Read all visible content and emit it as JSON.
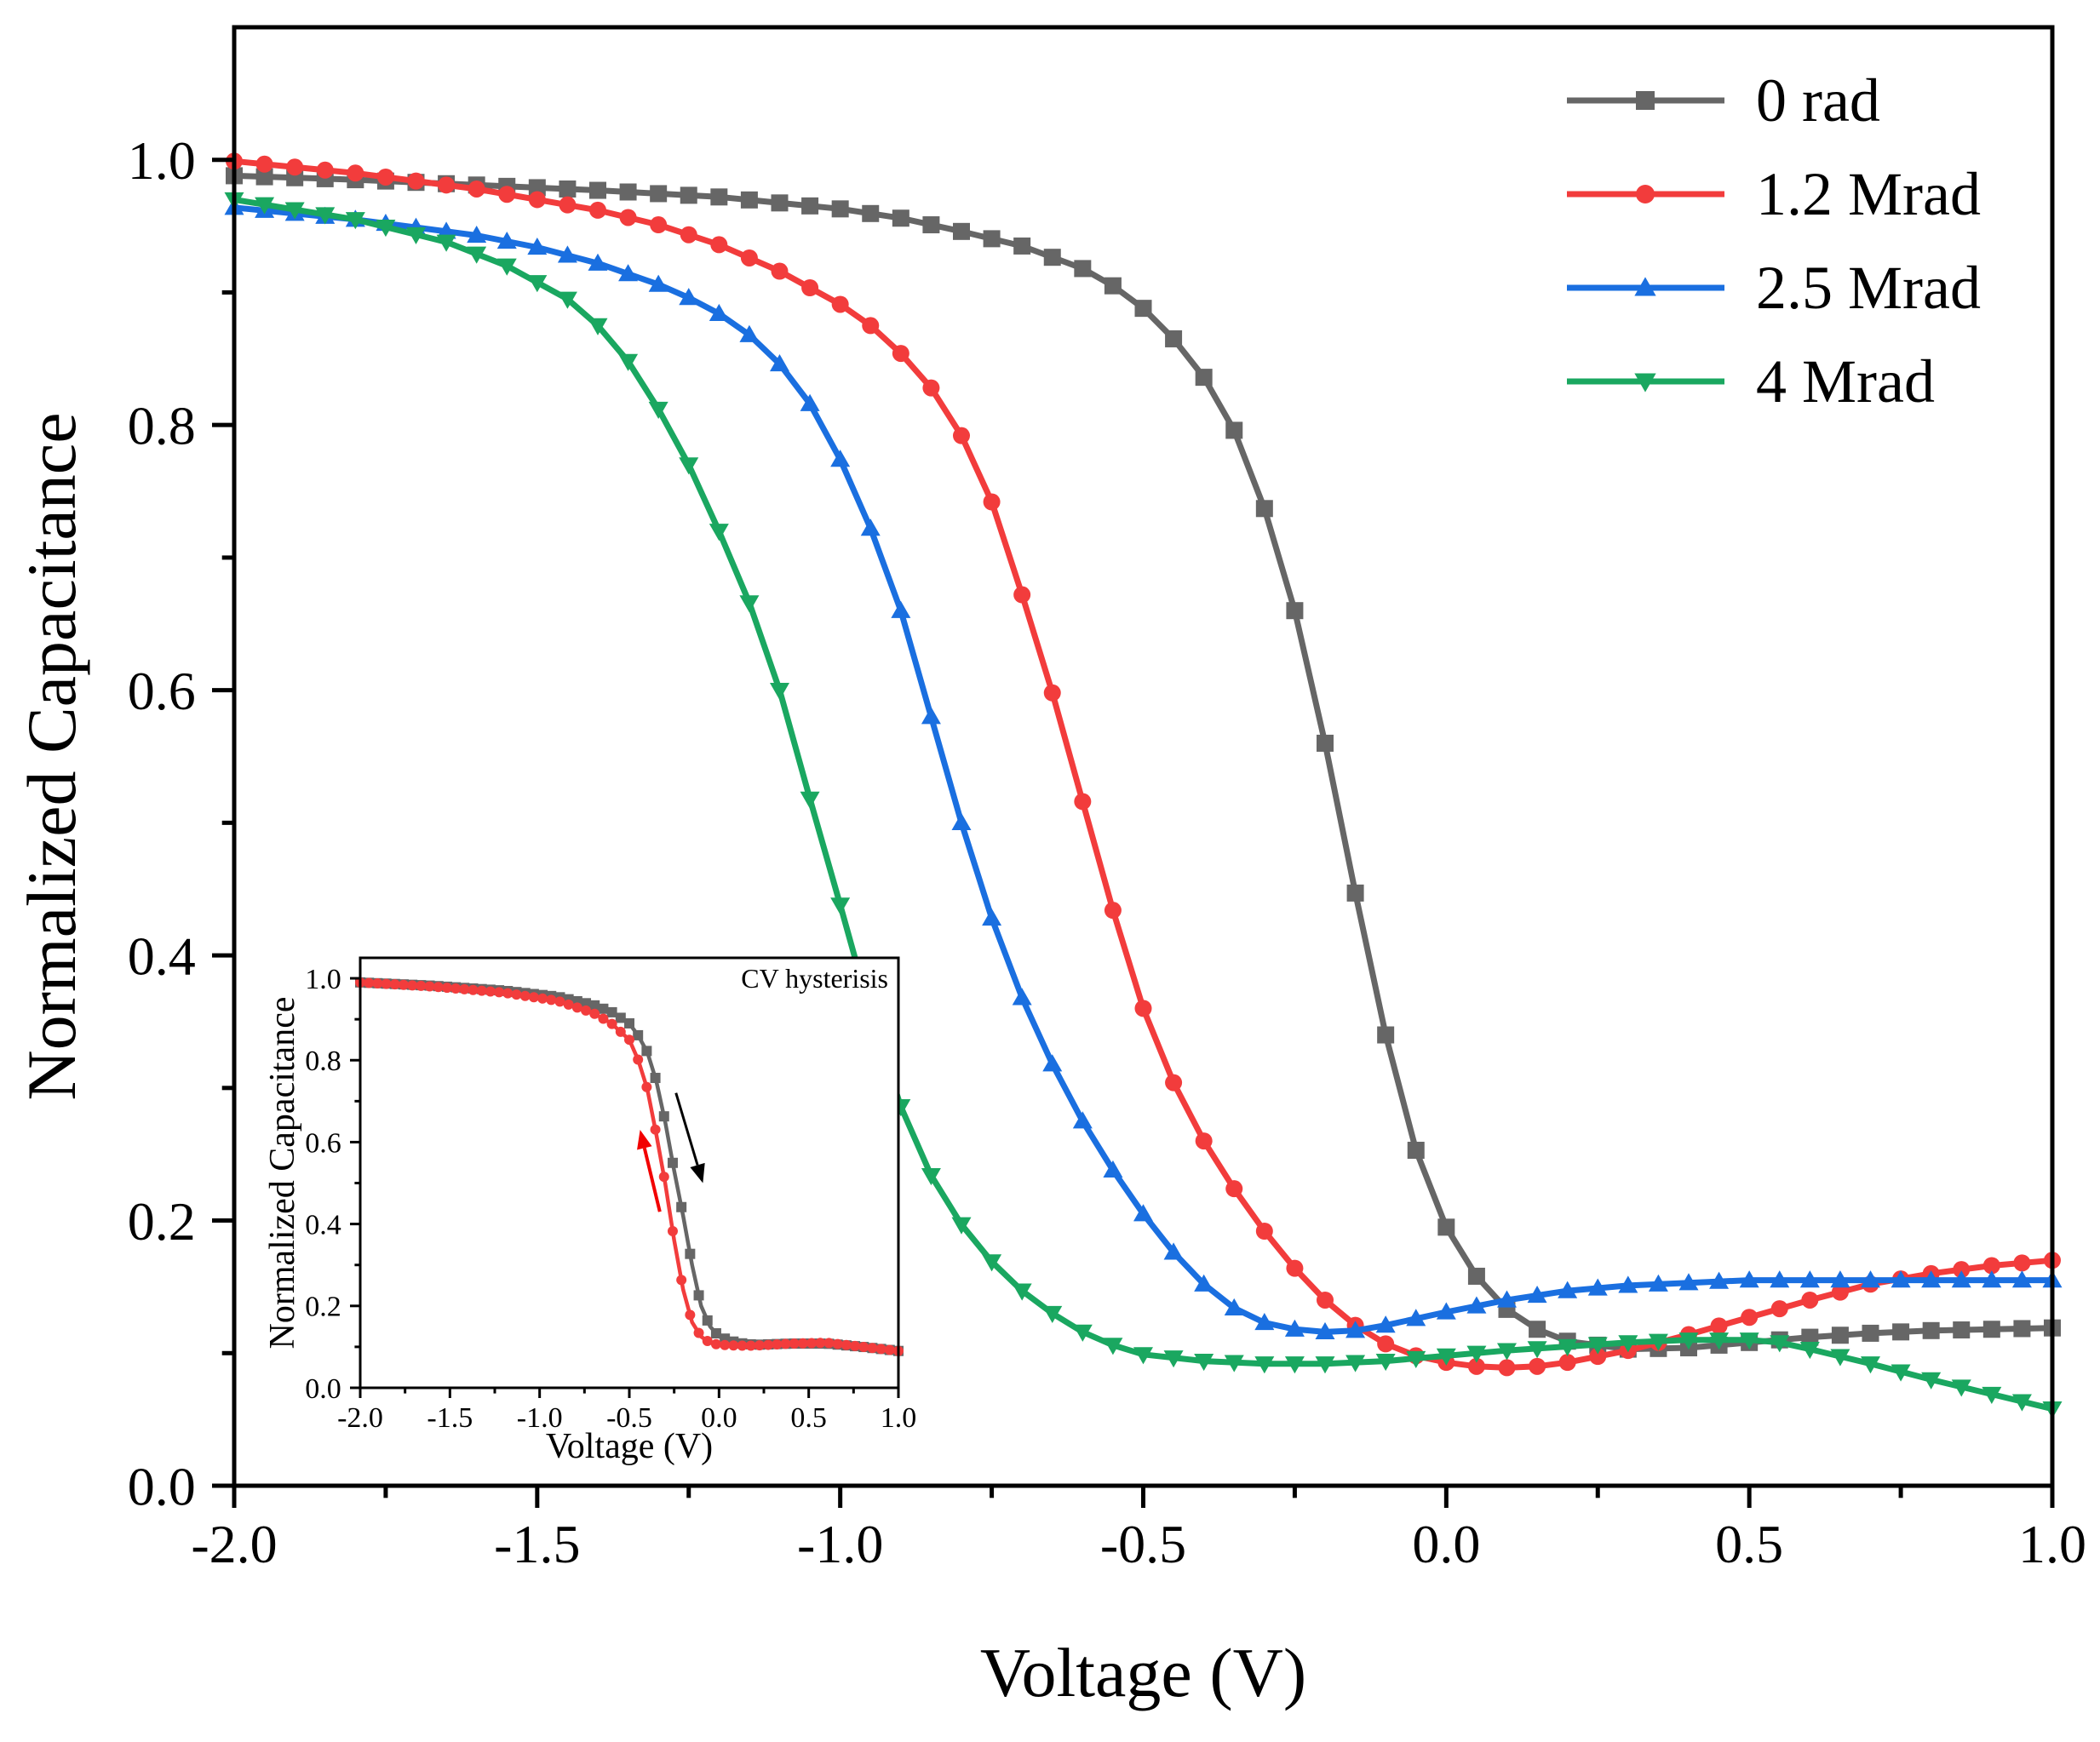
{
  "chart_data": [
    {
      "type": "line",
      "xlabel": "Voltage (V)",
      "ylabel": "Normalized Capacitance",
      "xlim": [
        -2.0,
        1.0
      ],
      "ylim": [
        0.0,
        1.1
      ],
      "x_ticks": [
        -2.0,
        -1.5,
        -1.0,
        -0.5,
        0.0,
        0.5,
        1.0
      ],
      "x_tick_labels": [
        "-2.0",
        "-1.5",
        "-1.0",
        "-0.5",
        "0.0",
        "0.5",
        "1.0"
      ],
      "y_ticks": [
        0.0,
        0.2,
        0.4,
        0.6,
        0.8,
        1.0
      ],
      "y_tick_labels": [
        "0.0",
        "0.2",
        "0.4",
        "0.6",
        "0.8",
        "1.0"
      ],
      "grid": false,
      "legend_position": "top-right",
      "series": [
        {
          "name": "0 rad",
          "color": "#666666",
          "marker": "square",
          "points": [
            [
              -2.0,
              0.988
            ],
            [
              -1.8,
              0.985
            ],
            [
              -1.6,
              0.981
            ],
            [
              -1.4,
              0.977
            ],
            [
              -1.2,
              0.972
            ],
            [
              -1.0,
              0.963
            ],
            [
              -0.9,
              0.956
            ],
            [
              -0.8,
              0.946
            ],
            [
              -0.7,
              0.935
            ],
            [
              -0.6,
              0.918
            ],
            [
              -0.55,
              0.905
            ],
            [
              -0.5,
              0.888
            ],
            [
              -0.45,
              0.865
            ],
            [
              -0.4,
              0.836
            ],
            [
              -0.35,
              0.796
            ],
            [
              -0.3,
              0.737
            ],
            [
              -0.25,
              0.66
            ],
            [
              -0.2,
              0.56
            ],
            [
              -0.15,
              0.447
            ],
            [
              -0.1,
              0.34
            ],
            [
              -0.05,
              0.253
            ],
            [
              0.0,
              0.195
            ],
            [
              0.05,
              0.158
            ],
            [
              0.1,
              0.133
            ],
            [
              0.15,
              0.118
            ],
            [
              0.2,
              0.109
            ],
            [
              0.3,
              0.103
            ],
            [
              0.4,
              0.104
            ],
            [
              0.5,
              0.108
            ],
            [
              0.6,
              0.112
            ],
            [
              0.7,
              0.115
            ],
            [
              0.8,
              0.117
            ],
            [
              0.9,
              0.118
            ],
            [
              1.0,
              0.119
            ]
          ]
        },
        {
          "name": "1.2 Mrad",
          "color": "#f23c3c",
          "marker": "circle",
          "points": [
            [
              -2.0,
              0.999
            ],
            [
              -1.8,
              0.99
            ],
            [
              -1.6,
              0.978
            ],
            [
              -1.4,
              0.962
            ],
            [
              -1.3,
              0.951
            ],
            [
              -1.2,
              0.936
            ],
            [
              -1.1,
              0.916
            ],
            [
              -1.0,
              0.891
            ],
            [
              -0.95,
              0.875
            ],
            [
              -0.9,
              0.854
            ],
            [
              -0.85,
              0.828
            ],
            [
              -0.8,
              0.792
            ],
            [
              -0.75,
              0.742
            ],
            [
              -0.7,
              0.672
            ],
            [
              -0.65,
              0.598
            ],
            [
              -0.6,
              0.516
            ],
            [
              -0.55,
              0.434
            ],
            [
              -0.5,
              0.36
            ],
            [
              -0.45,
              0.304
            ],
            [
              -0.4,
              0.26
            ],
            [
              -0.35,
              0.224
            ],
            [
              -0.3,
              0.192
            ],
            [
              -0.25,
              0.164
            ],
            [
              -0.2,
              0.14
            ],
            [
              -0.15,
              0.121
            ],
            [
              -0.1,
              0.107
            ],
            [
              -0.05,
              0.098
            ],
            [
              0.0,
              0.093
            ],
            [
              0.05,
              0.09
            ],
            [
              0.1,
              0.089
            ],
            [
              0.15,
              0.09
            ],
            [
              0.2,
              0.093
            ],
            [
              0.3,
              0.102
            ],
            [
              0.4,
              0.114
            ],
            [
              0.5,
              0.127
            ],
            [
              0.6,
              0.14
            ],
            [
              0.7,
              0.152
            ],
            [
              0.8,
              0.16
            ],
            [
              0.9,
              0.166
            ],
            [
              1.0,
              0.17
            ]
          ]
        },
        {
          "name": "2.5 Mrad",
          "color": "#1a6fe0",
          "marker": "triangle-up",
          "points": [
            [
              -2.0,
              0.964
            ],
            [
              -1.8,
              0.955
            ],
            [
              -1.6,
              0.943
            ],
            [
              -1.5,
              0.934
            ],
            [
              -1.4,
              0.922
            ],
            [
              -1.3,
              0.906
            ],
            [
              -1.25,
              0.896
            ],
            [
              -1.2,
              0.884
            ],
            [
              -1.15,
              0.868
            ],
            [
              -1.1,
              0.846
            ],
            [
              -1.05,
              0.816
            ],
            [
              -1.0,
              0.774
            ],
            [
              -0.95,
              0.722
            ],
            [
              -0.9,
              0.66
            ],
            [
              -0.85,
              0.58
            ],
            [
              -0.8,
              0.5
            ],
            [
              -0.75,
              0.428
            ],
            [
              -0.7,
              0.368
            ],
            [
              -0.65,
              0.318
            ],
            [
              -0.6,
              0.275
            ],
            [
              -0.55,
              0.238
            ],
            [
              -0.5,
              0.205
            ],
            [
              -0.45,
              0.176
            ],
            [
              -0.4,
              0.152
            ],
            [
              -0.35,
              0.134
            ],
            [
              -0.3,
              0.123
            ],
            [
              -0.25,
              0.118
            ],
            [
              -0.2,
              0.116
            ],
            [
              -0.15,
              0.117
            ],
            [
              -0.1,
              0.121
            ],
            [
              0.0,
              0.131
            ],
            [
              0.1,
              0.14
            ],
            [
              0.2,
              0.147
            ],
            [
              0.3,
              0.151
            ],
            [
              0.4,
              0.153
            ],
            [
              0.5,
              0.155
            ],
            [
              0.6,
              0.155
            ],
            [
              0.7,
              0.155
            ],
            [
              0.8,
              0.155
            ],
            [
              0.9,
              0.155
            ],
            [
              1.0,
              0.155
            ]
          ]
        },
        {
          "name": "4 Mrad",
          "color": "#1aa760",
          "marker": "triangle-down",
          "points": [
            [
              -2.0,
              0.97
            ],
            [
              -1.8,
              0.955
            ],
            [
              -1.65,
              0.938
            ],
            [
              -1.55,
              0.92
            ],
            [
              -1.45,
              0.895
            ],
            [
              -1.4,
              0.875
            ],
            [
              -1.35,
              0.848
            ],
            [
              -1.3,
              0.812
            ],
            [
              -1.25,
              0.77
            ],
            [
              -1.2,
              0.72
            ],
            [
              -1.15,
              0.666
            ],
            [
              -1.1,
              0.6
            ],
            [
              -1.05,
              0.518
            ],
            [
              -1.0,
              0.438
            ],
            [
              -0.95,
              0.356
            ],
            [
              -0.9,
              0.286
            ],
            [
              -0.85,
              0.234
            ],
            [
              -0.8,
              0.197
            ],
            [
              -0.75,
              0.169
            ],
            [
              -0.7,
              0.147
            ],
            [
              -0.65,
              0.13
            ],
            [
              -0.6,
              0.116
            ],
            [
              -0.55,
              0.106
            ],
            [
              -0.5,
              0.099
            ],
            [
              -0.4,
              0.094
            ],
            [
              -0.3,
              0.092
            ],
            [
              -0.2,
              0.092
            ],
            [
              -0.1,
              0.094
            ],
            [
              0.0,
              0.098
            ],
            [
              0.1,
              0.102
            ],
            [
              0.2,
              0.105
            ],
            [
              0.3,
              0.108
            ],
            [
              0.4,
              0.11
            ],
            [
              0.5,
              0.11
            ],
            [
              0.55,
              0.108
            ],
            [
              0.6,
              0.103
            ],
            [
              0.7,
              0.092
            ],
            [
              0.8,
              0.08
            ],
            [
              0.9,
              0.069
            ],
            [
              1.0,
              0.058
            ]
          ]
        }
      ]
    },
    {
      "type": "line",
      "annotation": "CV hysterisis",
      "xlabel": "Voltage (V)",
      "ylabel": "Normalized Capacitance",
      "xlim": [
        -2.0,
        1.0
      ],
      "ylim": [
        0.0,
        1.05
      ],
      "x_ticks": [
        -2.0,
        -1.5,
        -1.0,
        -0.5,
        0.0,
        0.5,
        1.0
      ],
      "x_tick_labels": [
        "-2.0",
        "-1.5",
        "-1.0",
        "-0.5",
        "0.0",
        "0.5",
        "1.0"
      ],
      "y_ticks": [
        0.0,
        0.2,
        0.4,
        0.6,
        0.8,
        1.0
      ],
      "y_tick_labels": [
        "0.0",
        "0.2",
        "0.4",
        "0.6",
        "0.8",
        "1.0"
      ],
      "grid": false,
      "series": [
        {
          "color": "#666666",
          "marker": "square",
          "points": [
            [
              -2.0,
              0.99
            ],
            [
              -1.6,
              0.982
            ],
            [
              -1.2,
              0.97
            ],
            [
              -0.9,
              0.955
            ],
            [
              -0.7,
              0.935
            ],
            [
              -0.6,
              0.918
            ],
            [
              -0.5,
              0.89
            ],
            [
              -0.45,
              0.86
            ],
            [
              -0.4,
              0.82
            ],
            [
              -0.35,
              0.75
            ],
            [
              -0.3,
              0.65
            ],
            [
              -0.25,
              0.53
            ],
            [
              -0.2,
              0.42
            ],
            [
              -0.15,
              0.3
            ],
            [
              -0.1,
              0.2
            ],
            [
              -0.05,
              0.15
            ],
            [
              0.0,
              0.125
            ],
            [
              0.1,
              0.11
            ],
            [
              0.2,
              0.105
            ],
            [
              0.4,
              0.108
            ],
            [
              0.6,
              0.108
            ],
            [
              0.8,
              0.1
            ],
            [
              1.0,
              0.09
            ]
          ]
        },
        {
          "color": "#f23c3c",
          "marker": "circle",
          "points": [
            [
              -2.0,
              0.99
            ],
            [
              -1.6,
              0.98
            ],
            [
              -1.2,
              0.965
            ],
            [
              -0.9,
              0.945
            ],
            [
              -0.7,
              0.915
            ],
            [
              -0.6,
              0.89
            ],
            [
              -0.5,
              0.85
            ],
            [
              -0.45,
              0.8
            ],
            [
              -0.4,
              0.73
            ],
            [
              -0.35,
              0.62
            ],
            [
              -0.3,
              0.5
            ],
            [
              -0.25,
              0.36
            ],
            [
              -0.2,
              0.24
            ],
            [
              -0.15,
              0.16
            ],
            [
              -0.1,
              0.125
            ],
            [
              -0.05,
              0.11
            ],
            [
              0.0,
              0.105
            ],
            [
              0.1,
              0.103
            ],
            [
              0.2,
              0.103
            ],
            [
              0.4,
              0.108
            ],
            [
              0.6,
              0.11
            ],
            [
              0.8,
              0.1
            ],
            [
              1.0,
              0.09
            ]
          ]
        }
      ]
    }
  ]
}
